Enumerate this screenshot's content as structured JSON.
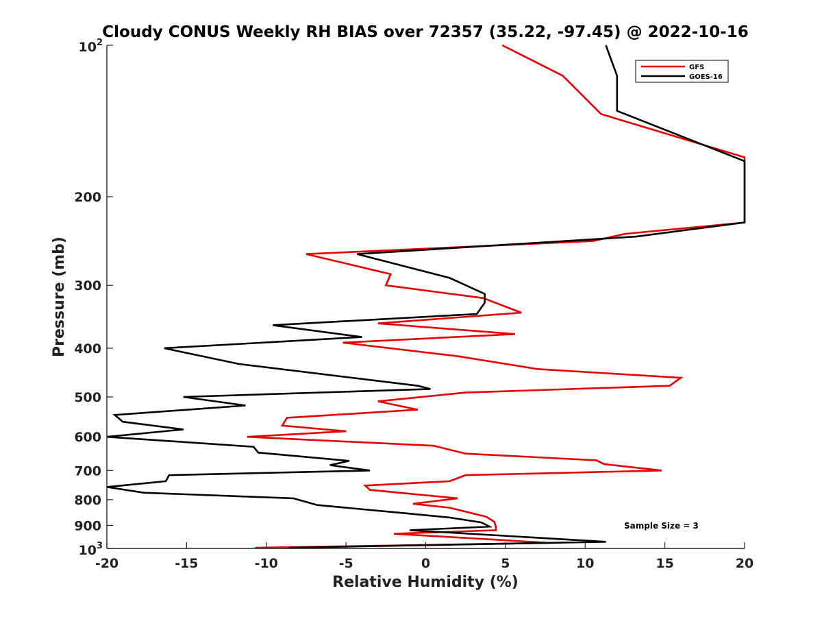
{
  "chart_data": {
    "type": "line",
    "title": "Cloudy CONUS Weekly RH BIAS over 72357 (35.22, -97.45) @ 2022-10-16",
    "xlabel": "Relative Humidity (%)",
    "ylabel": "Pressure (mb)",
    "xlim": [
      -20,
      20
    ],
    "ylim": [
      100,
      1000
    ],
    "y_scale": "log",
    "y_reversed": true,
    "x_ticks": [
      "-20",
      "-15",
      "-10",
      "-5",
      "0",
      "5",
      "10",
      "15",
      "20"
    ],
    "y_ticks": [
      {
        "value": 100,
        "base": "10",
        "exp": "2"
      },
      {
        "value": 200,
        "label": "200"
      },
      {
        "value": 300,
        "label": "300"
      },
      {
        "value": 400,
        "label": "400"
      },
      {
        "value": 500,
        "label": "500"
      },
      {
        "value": 600,
        "label": "600"
      },
      {
        "value": 700,
        "label": "700"
      },
      {
        "value": 800,
        "label": "800"
      },
      {
        "value": 900,
        "label": "900"
      },
      {
        "value": 1000,
        "base": "10",
        "exp": "3"
      }
    ],
    "grid": false,
    "legend_position": "top-right",
    "annotation": "Sample Size = 3",
    "series": [
      {
        "name": "GFS",
        "color": "#e60000",
        "points": [
          [
            4.8,
            100
          ],
          [
            8.6,
            115
          ],
          [
            11.0,
            137
          ],
          [
            20,
            167
          ],
          [
            20,
            225
          ],
          [
            12.5,
            237
          ],
          [
            10.5,
            245
          ],
          [
            -7.5,
            260
          ],
          [
            -2.2,
            285
          ],
          [
            -2.5,
            300
          ],
          [
            3.6,
            318
          ],
          [
            6.0,
            340
          ],
          [
            -3.0,
            357
          ],
          [
            5.6,
            375
          ],
          [
            -5.2,
            390
          ],
          [
            2.0,
            415
          ],
          [
            7.0,
            440
          ],
          [
            16.0,
            458
          ],
          [
            15.3,
            475
          ],
          [
            2.5,
            490
          ],
          [
            -3.0,
            510
          ],
          [
            -0.5,
            530
          ],
          [
            -8.7,
            550
          ],
          [
            -9.0,
            570
          ],
          [
            -5.0,
            585
          ],
          [
            -11.2,
            600
          ],
          [
            0.5,
            625
          ],
          [
            2.5,
            648
          ],
          [
            10.7,
            668
          ],
          [
            11.2,
            680
          ],
          [
            14.8,
            700
          ],
          [
            2.5,
            715
          ],
          [
            1.5,
            735
          ],
          [
            -3.8,
            750
          ],
          [
            -3.5,
            765
          ],
          [
            2.0,
            795
          ],
          [
            -0.8,
            815
          ],
          [
            1.5,
            830
          ],
          [
            2.5,
            845
          ],
          [
            3.8,
            865
          ],
          [
            4.3,
            885
          ],
          [
            4.4,
            905
          ],
          [
            4.4,
            920
          ],
          [
            -2.0,
            935
          ],
          [
            7.8,
            975
          ],
          [
            -10.7,
            997
          ]
        ]
      },
      {
        "name": "GOES-16",
        "color": "#000000",
        "points": [
          [
            11.3,
            100
          ],
          [
            12.0,
            115
          ],
          [
            12.0,
            135
          ],
          [
            20,
            170
          ],
          [
            20,
            225
          ],
          [
            13.2,
            240
          ],
          [
            -4.3,
            260
          ],
          [
            1.5,
            290
          ],
          [
            3.7,
            312
          ],
          [
            3.7,
            325
          ],
          [
            3.2,
            342
          ],
          [
            -9.6,
            360
          ],
          [
            -4.0,
            380
          ],
          [
            -16.4,
            400
          ],
          [
            -11.7,
            430
          ],
          [
            -0.5,
            475
          ],
          [
            0.3,
            482
          ],
          [
            -15.2,
            500
          ],
          [
            -11.3,
            520
          ],
          [
            -19.5,
            543
          ],
          [
            -19.0,
            560
          ],
          [
            -15.2,
            580
          ],
          [
            -20.0,
            600
          ],
          [
            -10.8,
            628
          ],
          [
            -10.5,
            645
          ],
          [
            -4.8,
            670
          ],
          [
            -6.0,
            683
          ],
          [
            -3.5,
            700
          ],
          [
            -16.1,
            715
          ],
          [
            -16.3,
            735
          ],
          [
            -20.0,
            755
          ],
          [
            -17.7,
            775
          ],
          [
            -8.3,
            795
          ],
          [
            -6.8,
            820
          ],
          [
            -1.5,
            850
          ],
          [
            1.5,
            868
          ],
          [
            3.5,
            888
          ],
          [
            4.0,
            905
          ],
          [
            -1.0,
            920
          ],
          [
            11.3,
            970
          ],
          [
            -8.6,
            997
          ]
        ]
      }
    ]
  }
}
